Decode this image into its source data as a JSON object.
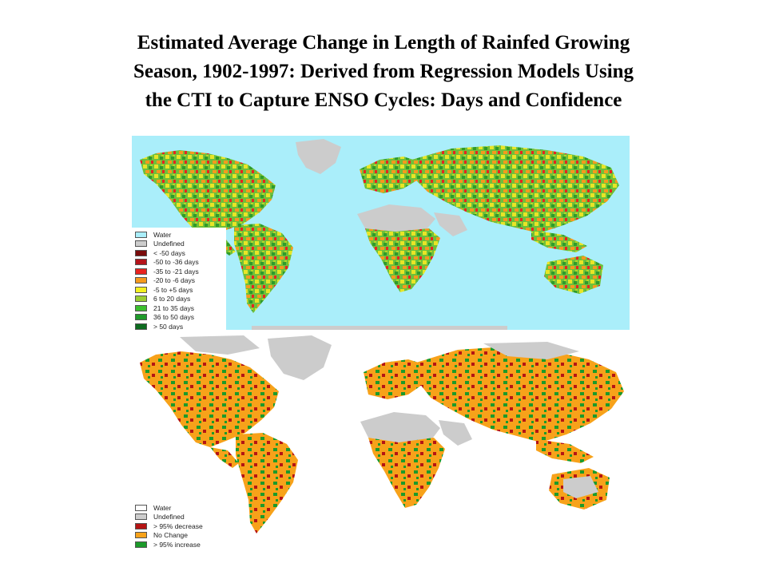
{
  "title": {
    "line1": "Estimated Average Change in Length of Rainfed Growing",
    "line2": "Season, 1902-1997: Derived from Regression Models Using",
    "line3": "the CTI to Capture ENSO Cycles: Days and Confidence"
  },
  "map_days": {
    "ocean_color": "#aaeefa",
    "legend": [
      {
        "label": "Water",
        "color": "#aaeefa"
      },
      {
        "label": "Undefined",
        "color": "#cccccc"
      },
      {
        "label": "< -50 days",
        "color": "#7a0c0c"
      },
      {
        "label": "-50 to -36 days",
        "color": "#b4141b"
      },
      {
        "label": "-35 to -21 days",
        "color": "#e8231f"
      },
      {
        "label": "-20 to -6 days",
        "color": "#f59a1d"
      },
      {
        "label": "-5 to +5 days",
        "color": "#f4f020"
      },
      {
        "label": "6 to 20 days",
        "color": "#9acd32"
      },
      {
        "label": "21 to 35 days",
        "color": "#3cbf2e"
      },
      {
        "label": "36 to 50 days",
        "color": "#1f9a2a"
      },
      {
        "label": "> 50 days",
        "color": "#0d6b1f"
      }
    ]
  },
  "map_confidence": {
    "ocean_color": "#ffffff",
    "legend": [
      {
        "label": "Water",
        "color": "#ffffff"
      },
      {
        "label": "Undefined",
        "color": "#cccccc"
      },
      {
        "label": "> 95% decrease",
        "color": "#b51414"
      },
      {
        "label": "No Change",
        "color": "#f7a21a"
      },
      {
        "label": "> 95% increase",
        "color": "#1c9a2a"
      }
    ]
  }
}
